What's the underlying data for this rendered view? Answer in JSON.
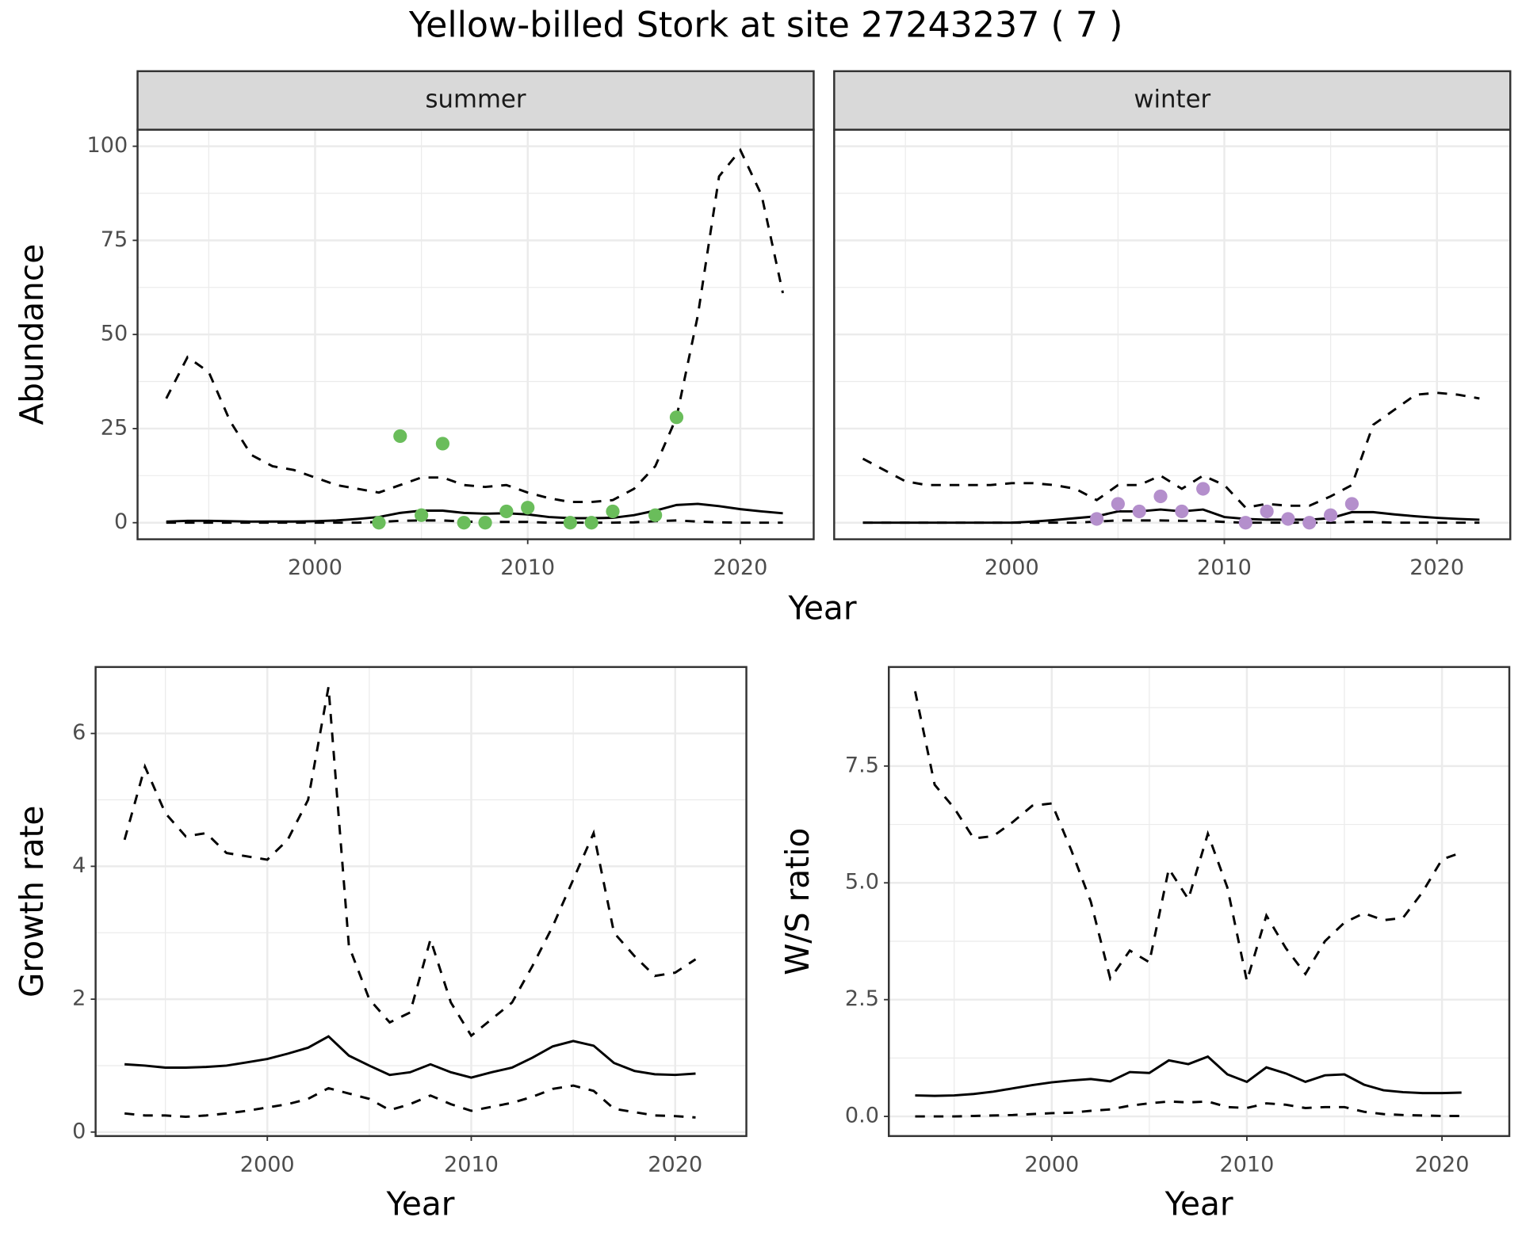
{
  "title": "Yellow-billed Stork at site 27243237 ( 7 )",
  "chart_data": [
    {
      "type": "line",
      "facet": "summer",
      "ylabel": "Abundance",
      "xlabel": "Year",
      "xlim": [
        1991.65,
        2023.45
      ],
      "xticks": [
        2000,
        2010,
        2020
      ],
      "ylim": [
        -4.4,
        104.4
      ],
      "yticks": [
        0,
        25,
        50,
        75,
        100
      ],
      "grid": true,
      "x": [
        1993,
        1994,
        1995,
        1996,
        1997,
        1998,
        1999,
        2000,
        2001,
        2002,
        2003,
        2004,
        2005,
        2006,
        2007,
        2008,
        2009,
        2010,
        2011,
        2012,
        2013,
        2014,
        2015,
        2016,
        2017,
        2018,
        2019,
        2020,
        2021,
        2022
      ],
      "series": [
        {
          "color": "#000000",
          "linestyle": "dashed",
          "values": [
            33,
            44,
            40,
            27,
            18,
            15,
            14,
            12,
            10,
            9,
            8,
            10,
            12,
            12,
            10,
            9.5,
            10,
            8,
            6.5,
            5.5,
            5.5,
            6,
            9,
            15,
            28,
            55,
            92,
            99,
            87,
            61
          ]
        },
        {
          "color": "#000000",
          "linestyle": "solid",
          "values": [
            0.3,
            0.5,
            0.5,
            0.4,
            0.3,
            0.3,
            0.3,
            0.4,
            0.6,
            1,
            1.5,
            2.6,
            3.2,
            3.2,
            2.6,
            2.4,
            2.5,
            2.2,
            1.5,
            1.2,
            1.2,
            1.3,
            2,
            3.2,
            4.7,
            5,
            4.4,
            3.6,
            3,
            2.5
          ]
        },
        {
          "color": "#000000",
          "linestyle": "dashed",
          "values": [
            0,
            0,
            0,
            0,
            0,
            0,
            0,
            0,
            0,
            0,
            0.2,
            0.5,
            0.6,
            0.6,
            0.3,
            0.2,
            0.2,
            0.2,
            0,
            0,
            0,
            0,
            0.1,
            0.4,
            0.6,
            0.3,
            0.1,
            0,
            0,
            0
          ]
        }
      ],
      "points": {
        "color": "#6abd5b",
        "x": [
          2003,
          2004,
          2005,
          2006,
          2007,
          2008,
          2009,
          2010,
          2012,
          2013,
          2014,
          2016,
          2017
        ],
        "values": [
          0,
          23,
          2,
          21,
          0,
          0,
          3,
          4,
          0,
          0,
          3,
          2,
          28
        ]
      }
    },
    {
      "type": "line",
      "facet": "winter",
      "sharey": true,
      "xlim": [
        1991.65,
        2023.45
      ],
      "xticks": [
        2000,
        2010,
        2020
      ],
      "grid": true,
      "x": [
        1993,
        1994,
        1995,
        1996,
        1997,
        1998,
        1999,
        2000,
        2001,
        2002,
        2003,
        2004,
        2005,
        2006,
        2007,
        2008,
        2009,
        2010,
        2011,
        2012,
        2013,
        2014,
        2015,
        2016,
        2017,
        2018,
        2019,
        2020,
        2021,
        2022
      ],
      "series": [
        {
          "color": "#000000",
          "linestyle": "dashed",
          "values": [
            17,
            14,
            11,
            10,
            10,
            10,
            10,
            10.5,
            10.5,
            10,
            9,
            6,
            10,
            10,
            12.5,
            9,
            12.5,
            10,
            4,
            5,
            4.5,
            4.5,
            7,
            10,
            26,
            30,
            34,
            34.5,
            34,
            33
          ]
        },
        {
          "color": "#000000",
          "linestyle": "solid",
          "values": [
            0,
            0,
            0,
            0,
            0,
            0,
            0,
            0,
            0.3,
            0.7,
            1.2,
            1.7,
            3,
            3,
            3.5,
            3,
            3.5,
            1.5,
            1,
            0.8,
            0.8,
            0.8,
            1.2,
            2.8,
            2.8,
            2.2,
            1.7,
            1.3,
            1,
            0.8
          ]
        },
        {
          "color": "#000000",
          "linestyle": "dashed",
          "values": [
            0,
            0,
            0,
            0,
            0,
            0,
            0,
            0,
            0,
            0,
            0,
            0.3,
            0.6,
            0.6,
            0.6,
            0.5,
            0.5,
            0.2,
            0,
            0,
            0,
            0,
            0,
            0.2,
            0.2,
            0,
            0,
            0,
            0,
            0
          ]
        }
      ],
      "points": {
        "color": "#b48fcc",
        "x": [
          2004,
          2005,
          2006,
          2007,
          2008,
          2009,
          2011,
          2012,
          2013,
          2014,
          2015,
          2016
        ],
        "values": [
          1,
          5,
          3,
          7,
          3,
          9,
          0,
          3,
          1,
          0,
          2,
          5
        ]
      }
    },
    {
      "type": "line",
      "ylabel": "Growth rate",
      "xlabel": "Year",
      "xlim": [
        1991.58,
        2023.49
      ],
      "xticks": [
        2000,
        2010,
        2020
      ],
      "ylim": [
        -0.06,
        7.0
      ],
      "yticks": [
        0,
        2,
        4,
        6
      ],
      "grid": true,
      "x": [
        1993,
        1994,
        1995,
        1996,
        1997,
        1998,
        1999,
        2000,
        2001,
        2002,
        2003,
        2004,
        2005,
        2006,
        2007,
        2008,
        2009,
        2010,
        2011,
        2012,
        2013,
        2014,
        2015,
        2016,
        2017,
        2018,
        2019,
        2020,
        2021
      ],
      "series": [
        {
          "color": "#000000",
          "linestyle": "dashed",
          "values": [
            4.4,
            5.5,
            4.8,
            4.45,
            4.5,
            4.2,
            4.15,
            4.1,
            4.4,
            5.0,
            6.7,
            2.8,
            2.0,
            1.65,
            1.8,
            2.9,
            1.95,
            1.45,
            1.7,
            1.95,
            2.5,
            3.1,
            3.8,
            4.5,
            3.0,
            2.65,
            2.35,
            2.4,
            2.6
          ]
        },
        {
          "color": "#000000",
          "linestyle": "solid",
          "values": [
            1.02,
            1.0,
            0.97,
            0.97,
            0.98,
            1.0,
            1.05,
            1.1,
            1.18,
            1.27,
            1.44,
            1.15,
            1.0,
            0.86,
            0.9,
            1.02,
            0.9,
            0.82,
            0.9,
            0.97,
            1.12,
            1.29,
            1.37,
            1.3,
            1.04,
            0.92,
            0.87,
            0.86,
            0.88
          ]
        },
        {
          "color": "#000000",
          "linestyle": "dashed",
          "values": [
            0.28,
            0.25,
            0.25,
            0.23,
            0.25,
            0.28,
            0.32,
            0.37,
            0.42,
            0.5,
            0.66,
            0.58,
            0.5,
            0.33,
            0.42,
            0.55,
            0.42,
            0.32,
            0.38,
            0.44,
            0.53,
            0.65,
            0.7,
            0.62,
            0.35,
            0.3,
            0.25,
            0.24,
            0.22
          ]
        }
      ]
    },
    {
      "type": "line",
      "ylabel": "W/S ratio",
      "xlabel": "Year",
      "xlim": [
        1991.65,
        2023.45
      ],
      "xticks": [
        2000,
        2010,
        2020
      ],
      "ylim": [
        -0.42,
        9.62
      ],
      "yticks": [
        {
          "value": 0,
          "label": "0.0"
        },
        2.5,
        {
          "value": 5,
          "label": "5.0"
        },
        7.5
      ],
      "grid": true,
      "x": [
        1993,
        1994,
        1995,
        1996,
        1997,
        1998,
        1999,
        2000,
        2001,
        2002,
        2003,
        2004,
        2005,
        2006,
        2007,
        2008,
        2009,
        2010,
        2011,
        2012,
        2013,
        2014,
        2015,
        2016,
        2017,
        2018,
        2019,
        2020,
        2021
      ],
      "series": [
        {
          "color": "#000000",
          "linestyle": "dashed",
          "values": [
            9.1,
            7.1,
            6.6,
            5.95,
            6.0,
            6.3,
            6.65,
            6.7,
            5.7,
            4.6,
            2.95,
            3.55,
            3.3,
            5.3,
            4.65,
            6.05,
            4.9,
            2.9,
            4.3,
            3.6,
            3.05,
            3.75,
            4.15,
            4.35,
            4.2,
            4.25,
            4.8,
            5.5,
            5.65
          ]
        },
        {
          "color": "#000000",
          "linestyle": "solid",
          "values": [
            0.45,
            0.44,
            0.45,
            0.48,
            0.53,
            0.6,
            0.67,
            0.73,
            0.77,
            0.8,
            0.75,
            0.95,
            0.93,
            1.2,
            1.12,
            1.28,
            0.9,
            0.74,
            1.05,
            0.92,
            0.74,
            0.88,
            0.9,
            0.68,
            0.56,
            0.52,
            0.5,
            0.5,
            0.51
          ]
        },
        {
          "color": "#000000",
          "linestyle": "dashed",
          "values": [
            0,
            0,
            0,
            0.01,
            0.02,
            0.03,
            0.05,
            0.07,
            0.08,
            0.12,
            0.15,
            0.23,
            0.28,
            0.32,
            0.3,
            0.32,
            0.2,
            0.18,
            0.28,
            0.25,
            0.18,
            0.2,
            0.2,
            0.1,
            0.05,
            0.03,
            0.02,
            0.01,
            0.01
          ]
        }
      ]
    }
  ]
}
